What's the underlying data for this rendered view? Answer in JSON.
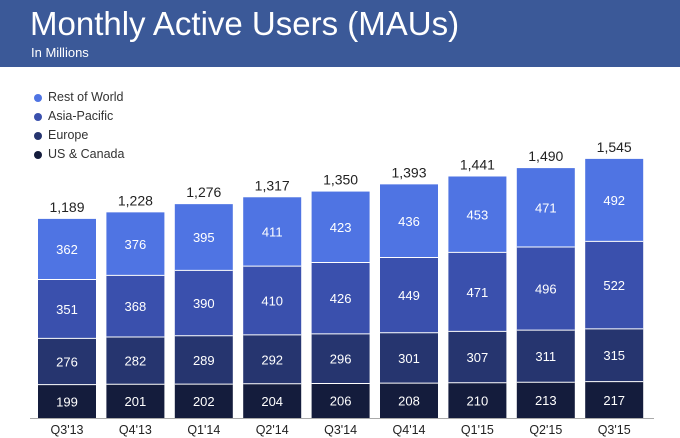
{
  "header": {
    "title": "Monthly Active Users (MAUs)",
    "subtitle": "In Millions"
  },
  "colors": {
    "header_bg": "#3b5998",
    "rest_of_world": "#4f74e3",
    "asia_pacific": "#3a50ad",
    "europe": "#26356f",
    "us_canada": "#141c3c",
    "axis": "#aaaaaa"
  },
  "chart_data": {
    "type": "bar",
    "stacked": true,
    "categories": [
      "Q3'13",
      "Q4'13",
      "Q1'14",
      "Q2'14",
      "Q3'14",
      "Q4'14",
      "Q1'15",
      "Q2'15",
      "Q3'15"
    ],
    "series": [
      {
        "name": "US & Canada",
        "values": [
          199,
          201,
          202,
          204,
          206,
          208,
          210,
          213,
          217
        ]
      },
      {
        "name": "Europe",
        "values": [
          276,
          282,
          289,
          292,
          296,
          301,
          307,
          311,
          315
        ]
      },
      {
        "name": "Asia-Pacific",
        "values": [
          351,
          368,
          390,
          410,
          426,
          449,
          471,
          496,
          522
        ]
      },
      {
        "name": "Rest of World",
        "values": [
          362,
          376,
          395,
          411,
          423,
          436,
          453,
          471,
          492
        ]
      }
    ],
    "totals": [
      "1,189",
      "1,228",
      "1,276",
      "1,317",
      "1,350",
      "1,393",
      "1,441",
      "1,490",
      "1,545"
    ],
    "legend_position": "top-left",
    "legend_order": [
      "Rest of World",
      "Asia-Pacific",
      "Europe",
      "US & Canada"
    ],
    "grid": false
  }
}
